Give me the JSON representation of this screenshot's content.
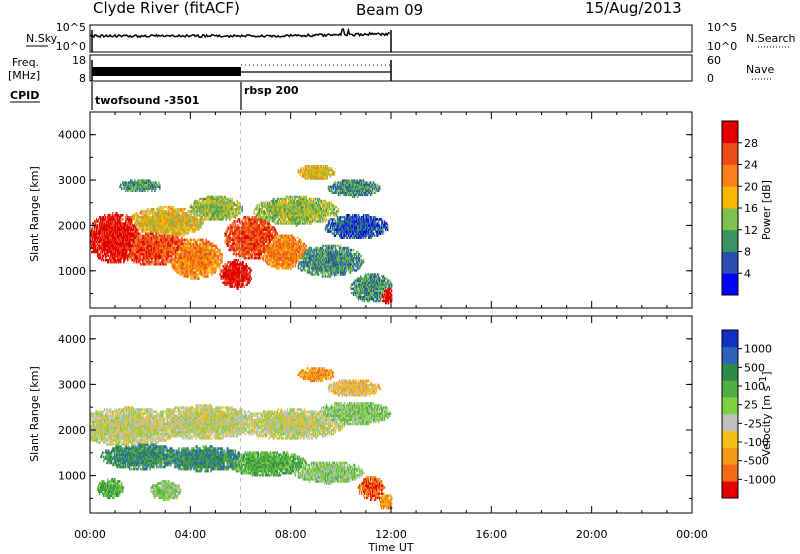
{
  "header": {
    "station": "Clyde River (fitACF)",
    "beam": "Beam 09",
    "date": "15/Aug/2013"
  },
  "nsky_panel": {
    "left_label": "N.Sky",
    "left_ticks": [
      "10^5",
      "10^0"
    ],
    "right_ticks": [
      "10^5",
      "10^0"
    ],
    "right_label": "N.Search"
  },
  "freq_panel": {
    "left_label_1": "Freq.",
    "left_label_2": "[MHz]",
    "left_ticks": [
      "18",
      "8"
    ],
    "right_ticks": [
      "60",
      "0"
    ],
    "right_label": "Nave"
  },
  "cpid_panel": {
    "label": "CPID",
    "programs": [
      {
        "name": "twofsound -3501",
        "start_hour": 0
      },
      {
        "name": "rbsp 200",
        "start_hour": 6
      }
    ]
  },
  "range_axis": {
    "label": "Slant Range [km]",
    "ticks": [
      1000,
      2000,
      3000,
      4000
    ],
    "ylim": [
      180,
      4500
    ]
  },
  "time_axis": {
    "label": "Time UT",
    "ticks": [
      "00:00",
      "04:00",
      "08:00",
      "12:00",
      "16:00",
      "20:00",
      "00:00"
    ],
    "xlim": [
      0,
      24
    ]
  },
  "power_colorbar": {
    "label": "Power [dB]",
    "ticks": [
      "4",
      "8",
      "12",
      "16",
      "20",
      "24",
      "28"
    ],
    "colors": [
      "#0000ff",
      "#2950b0",
      "#3a9360",
      "#7fc050",
      "#f8b800",
      "#f8801a",
      "#ec4a18",
      "#e20000"
    ]
  },
  "velocity_colorbar": {
    "label_main": "Velocity",
    "label_unit": "[m s",
    "label_sup": "-1",
    "label_close": "]",
    "ticks": [
      "1000",
      "500",
      "100",
      "25",
      "-25",
      "-100",
      "-500",
      "-1000"
    ],
    "colors": [
      "#1030c8",
      "#2f62b8",
      "#2e8a4a",
      "#52ae40",
      "#7fd040",
      "#c0c0c0",
      "#f4bf18",
      "#f49818",
      "#f06a18",
      "#e80000"
    ]
  },
  "chart_data": {
    "type": "heatmap",
    "x_unit": "hours UT",
    "data_extent_hours": [
      0,
      12
    ],
    "panels": [
      {
        "name": "Power",
        "blobs": [
          {
            "t": 1.0,
            "r": 1700,
            "dt": 1.1,
            "dr": 520,
            "c": 7
          },
          {
            "t": 2.5,
            "r": 1500,
            "dt": 1.3,
            "dr": 380,
            "c": 6
          },
          {
            "t": 3.0,
            "r": 2050,
            "dt": 1.4,
            "dr": 320,
            "c": 4
          },
          {
            "t": 4.2,
            "r": 1250,
            "dt": 1.0,
            "dr": 420,
            "c": 5
          },
          {
            "t": 5.0,
            "r": 2350,
            "dt": 1.0,
            "dr": 260,
            "c": 3
          },
          {
            "t": 5.8,
            "r": 900,
            "dt": 0.6,
            "dr": 300,
            "c": 7
          },
          {
            "t": 6.4,
            "r": 1700,
            "dt": 1.0,
            "dr": 450,
            "c": 6
          },
          {
            "t": 7.7,
            "r": 1400,
            "dt": 0.9,
            "dr": 360,
            "c": 5
          },
          {
            "t": 8.2,
            "r": 2300,
            "dt": 1.6,
            "dr": 300,
            "c": 3
          },
          {
            "t": 9.5,
            "r": 1200,
            "dt": 1.3,
            "dr": 330,
            "c": 2
          },
          {
            "t": 10.6,
            "r": 1950,
            "dt": 1.2,
            "dr": 260,
            "c": 1
          },
          {
            "t": 11.2,
            "r": 600,
            "dt": 0.8,
            "dr": 300,
            "c": 2
          },
          {
            "t": 11.85,
            "r": 450,
            "dt": 0.3,
            "dr": 180,
            "c": 7
          },
          {
            "t": 2.0,
            "r": 2850,
            "dt": 0.8,
            "dr": 140,
            "c": 2
          },
          {
            "t": 9.0,
            "r": 3150,
            "dt": 0.7,
            "dr": 160,
            "c": 4
          },
          {
            "t": 10.5,
            "r": 2800,
            "dt": 1.0,
            "dr": 180,
            "c": 2
          }
        ]
      },
      {
        "name": "Velocity",
        "blobs": [
          {
            "t": 1.5,
            "r": 2050,
            "dt": 2.0,
            "dr": 400,
            "c": 5
          },
          {
            "t": 4.5,
            "r": 2150,
            "dt": 2.2,
            "dr": 350,
            "c": 5
          },
          {
            "t": 8.0,
            "r": 2100,
            "dt": 2.0,
            "dr": 320,
            "c": 5
          },
          {
            "t": 2.0,
            "r": 1400,
            "dt": 1.5,
            "dr": 270,
            "c": 2
          },
          {
            "t": 4.5,
            "r": 1350,
            "dt": 1.6,
            "dr": 260,
            "c": 2
          },
          {
            "t": 7.0,
            "r": 1250,
            "dt": 1.5,
            "dr": 260,
            "c": 3
          },
          {
            "t": 9.5,
            "r": 1050,
            "dt": 1.3,
            "dr": 230,
            "c": 4
          },
          {
            "t": 10.5,
            "r": 2350,
            "dt": 1.4,
            "dr": 240,
            "c": 4
          },
          {
            "t": 0.8,
            "r": 700,
            "dt": 0.5,
            "dr": 200,
            "c": 3
          },
          {
            "t": 3.0,
            "r": 650,
            "dt": 0.6,
            "dr": 200,
            "c": 4
          },
          {
            "t": 11.2,
            "r": 700,
            "dt": 0.5,
            "dr": 250,
            "c": 8
          },
          {
            "t": 11.8,
            "r": 400,
            "dt": 0.3,
            "dr": 160,
            "c": 7
          },
          {
            "t": 9.0,
            "r": 3200,
            "dt": 0.7,
            "dr": 140,
            "c": 7
          },
          {
            "t": 10.5,
            "r": 2900,
            "dt": 1.0,
            "dr": 180,
            "c": 6
          }
        ]
      }
    ]
  }
}
